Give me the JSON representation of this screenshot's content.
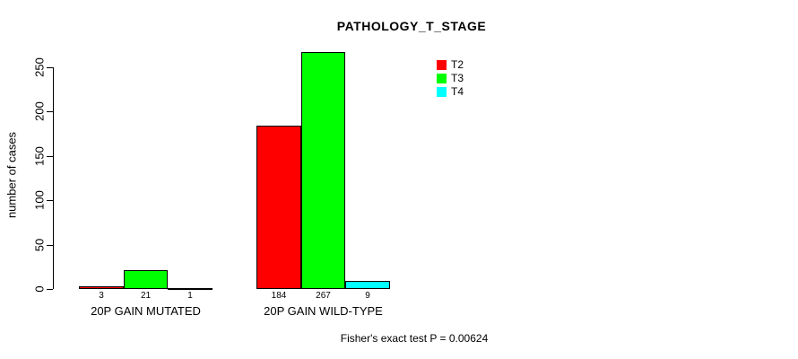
{
  "chart_data": {
    "type": "bar",
    "title": "PATHOLOGY_T_STAGE",
    "ylabel": "number of cases",
    "xlabel": "",
    "categories": [
      "20P GAIN MUTATED",
      "20P GAIN WILD-TYPE"
    ],
    "series": [
      {
        "name": "T2",
        "color": "#ff0000",
        "values": [
          3,
          184
        ]
      },
      {
        "name": "T3",
        "color": "#00ff00",
        "values": [
          21,
          267
        ]
      },
      {
        "name": "T4",
        "color": "#00ffff",
        "values": [
          1,
          9
        ]
      }
    ],
    "yticks": [
      0,
      50,
      100,
      150,
      200,
      250
    ],
    "ylim": [
      0,
      250
    ],
    "grid": false,
    "legend_position": "top-right",
    "bar_border_color": "#000000",
    "footer": "Fisher's exact test P = 0.00624"
  }
}
